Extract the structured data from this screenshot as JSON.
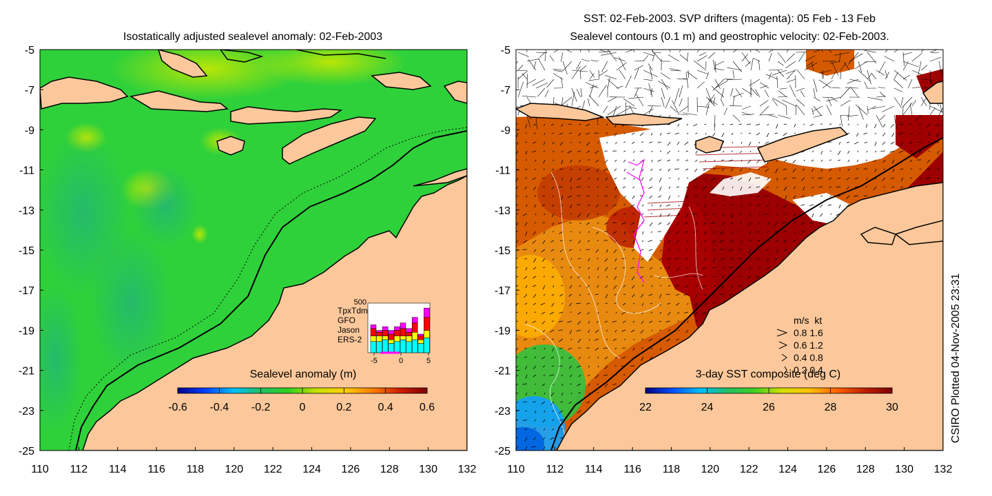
{
  "left_panel": {
    "title": "Isostatically adjusted sealevel anomaly: 02-Feb-2003",
    "colorbar_label": "Sealevel anomaly (m)",
    "colorbar_ticks": [
      "-0.6",
      "-0.4",
      "-0.2",
      "0",
      "0.2",
      "0.4",
      "0.6"
    ],
    "colormap": [
      "#00008f",
      "#0040ff",
      "#00bfff",
      "#20c060",
      "#30d020",
      "#c8e000",
      "#ffd000",
      "#ff8000",
      "#d02000",
      "#800000"
    ],
    "inset": {
      "top_tick": "500",
      "legend": [
        {
          "label": "TpxTdm",
          "color": "#ff00ff"
        },
        {
          "label": "GFO",
          "color": "#ff0000"
        },
        {
          "label": "Jason",
          "color": "#ffff00"
        },
        {
          "label": "ERS-2",
          "color": "#00ffff"
        }
      ],
      "x_ticks": [
        "-5",
        "0",
        "5"
      ],
      "bars": [
        {
          "ers2": 0.3,
          "jason": 0.15,
          "gfo": 0.2,
          "tpx": 0.1
        },
        {
          "ers2": 0.3,
          "jason": 0.15,
          "gfo": 0.1,
          "tpx": 0.05
        },
        {
          "ers2": 0.35,
          "jason": 0.1,
          "gfo": 0.15,
          "tpx": 0.1
        },
        {
          "ers2": 0.25,
          "jason": 0.1,
          "gfo": 0.15,
          "tpx": 0.1
        },
        {
          "ers2": 0.3,
          "jason": 0.15,
          "gfo": 0.15,
          "tpx": 0.1
        },
        {
          "ers2": 0.35,
          "jason": 0.1,
          "gfo": 0.2,
          "tpx": 0.15
        },
        {
          "ers2": 0.3,
          "jason": 0.15,
          "gfo": 0.1,
          "tpx": 0.1
        },
        {
          "ers2": 0.35,
          "jason": 0.2,
          "gfo": 0.25,
          "tpx": 0.15
        },
        {
          "ers2": 0.25,
          "jason": 0.1,
          "gfo": 0.1,
          "tpx": 0.05
        },
        {
          "ers2": 0.4,
          "jason": 0.2,
          "gfo": 0.35,
          "tpx": 0.25
        }
      ]
    }
  },
  "right_panel": {
    "title_line1": "SST: 02-Feb-2003. SVP drifters (magenta): 05 Feb - 13 Feb",
    "title_line2": "Sealevel contours (0.1 m) and geostrophic velocity: 02-Feb-2003.",
    "colorbar_label": "3-day SST composite (deg C)",
    "colorbar_ticks": [
      "22",
      "24",
      "26",
      "28",
      "30"
    ],
    "colormap": [
      "#000080",
      "#0050ff",
      "#00c0ff",
      "#20c060",
      "#40d020",
      "#d8e000",
      "#ffc000",
      "#ff6000",
      "#c02000",
      "#800000"
    ],
    "velocity_legend": {
      "header": "m/s  kt",
      "rows": [
        "0.8  1.6",
        "0.6  1.2",
        "0.4  0.8",
        "0.2  0.4"
      ]
    },
    "credit": "CSIRO Plotted 04-Nov-2005 23:31"
  },
  "axes": {
    "x_ticks": [
      "110",
      "112",
      "114",
      "116",
      "118",
      "120",
      "122",
      "124",
      "126",
      "128",
      "130",
      "132"
    ],
    "y_ticks": [
      "-5",
      "-7",
      "-9",
      "-11",
      "-13",
      "-15",
      "-17",
      "-19",
      "-21",
      "-23",
      "-25"
    ]
  },
  "colors": {
    "land": "#fcc89b",
    "sea_green": "#2fd13a",
    "sst_red": "#a00000",
    "drifter": "#ff00ff"
  }
}
